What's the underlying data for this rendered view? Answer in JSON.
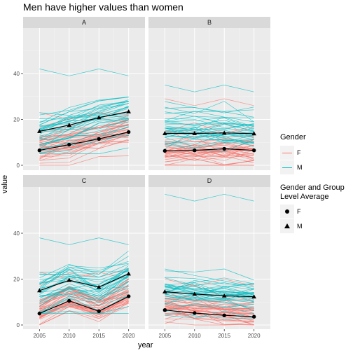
{
  "title": "Men have higher values than women",
  "chart_data": {
    "type": "line",
    "xlabel": "year",
    "ylabel": "value",
    "x_ticks": [
      2005,
      2010,
      2015,
      2020
    ],
    "y_ticks": [
      0,
      20,
      40
    ],
    "xlim": [
      2002.25,
      2022.75
    ],
    "ylim_top_row": [
      -2,
      50
    ],
    "ylim_bottom_row": [
      -2,
      60
    ],
    "grid": true,
    "legend_position": "right",
    "colors": {
      "F": "#f8766d",
      "M": "#00bfc4",
      "average": "#000000",
      "panel_bg": "#ebebeb",
      "strip_bg": "#d9d9d9"
    },
    "facets": [
      {
        "label": "A",
        "averages": [
          {
            "gender": "F",
            "values": [
              6.5,
              9,
              11.5,
              14.5
            ]
          },
          {
            "gender": "M",
            "values": [
              14.8,
              17.5,
              20.8,
              23.4
            ]
          }
        ],
        "individual_ranges": {
          "F": [
            0,
            25
          ],
          "M": [
            5,
            42
          ]
        }
      },
      {
        "label": "B",
        "averages": [
          {
            "gender": "F",
            "values": [
              6.3,
              6.5,
              7.2,
              6.5
            ]
          },
          {
            "gender": "M",
            "values": [
              13.9,
              13.9,
              14.1,
              13.8
            ]
          }
        ],
        "individual_ranges": {
          "F": [
            0,
            31
          ],
          "M": [
            3,
            35
          ]
        }
      },
      {
        "label": "C",
        "averages": [
          {
            "gender": "F",
            "values": [
              5,
              10.5,
              6,
              12.5
            ]
          },
          {
            "gender": "M",
            "values": [
              15,
              19.5,
              16.5,
              22.3
            ]
          }
        ],
        "individual_ranges": {
          "F": [
            0,
            25
          ],
          "M": [
            5,
            38
          ]
        }
      },
      {
        "label": "D",
        "averages": [
          {
            "gender": "F",
            "values": [
              6.5,
              5.2,
              4.2,
              3.6
            ]
          },
          {
            "gender": "M",
            "values": [
              14.5,
              13.5,
              12.7,
              12.3
            ]
          }
        ],
        "individual_ranges": {
          "F": [
            0,
            22
          ],
          "M": [
            3,
            57
          ]
        }
      }
    ],
    "legends": [
      {
        "title": "Gender",
        "entries": [
          "F",
          "M"
        ]
      },
      {
        "title": "Gender and Group\nLevel Average",
        "entries": [
          "F",
          "M"
        ]
      }
    ]
  }
}
